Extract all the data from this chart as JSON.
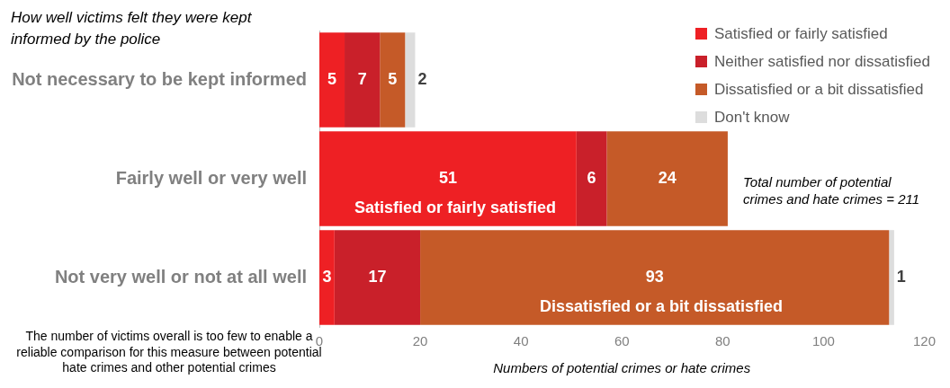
{
  "chart_data": {
    "type": "bar",
    "orientation": "horizontal",
    "stacked": true,
    "title": "How well victims felt they were kept informed by the police",
    "xlabel": "Numbers of potential crimes or hate crimes",
    "categories": [
      "Not necessary to be kept informed",
      "Fairly well or very well",
      "Not very well or not at all well"
    ],
    "series": [
      {
        "name": "Satisfied or fairly satisfied",
        "color": "#ee2024",
        "values": [
          5,
          51,
          3
        ]
      },
      {
        "name": "Neither satisfied nor dissatisfied",
        "color": "#c9202a",
        "values": [
          7,
          6,
          17
        ]
      },
      {
        "name": "Dissatisfied or a bit dissatisfied",
        "color": "#c55a28",
        "values": [
          5,
          24,
          93
        ]
      },
      {
        "name": "Don't know",
        "color": "#dddddd",
        "values": [
          2,
          null,
          1
        ]
      }
    ],
    "xlim": [
      0,
      120
    ],
    "xticks": [
      0,
      20,
      40,
      60,
      80,
      100,
      120
    ],
    "grid": false,
    "legend": "top right",
    "data_labels": true,
    "annotations": [
      "Total number of potential crimes and hate crimes = 211",
      "The number of victims overall is too few to enable a reliable comparison for this measure between potential hate crimes and other potential crimes",
      "Satisfied or fairly satisfied",
      "Dissatisfied or a bit dissatisfied"
    ]
  }
}
